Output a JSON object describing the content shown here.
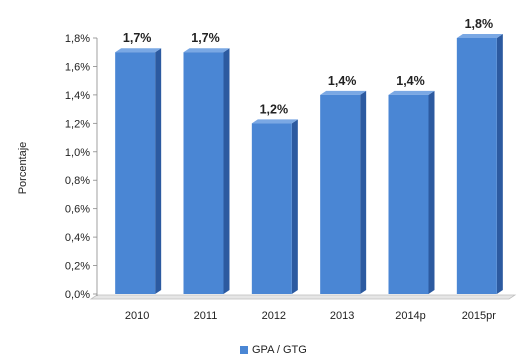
{
  "chart_data": {
    "type": "bar",
    "categories": [
      "2010",
      "2011",
      "2012",
      "2013",
      "2014p",
      "2015pr"
    ],
    "series": [
      {
        "name": "GPA / GTG",
        "values": [
          1.7,
          1.7,
          1.2,
          1.4,
          1.4,
          1.8
        ]
      }
    ],
    "data_labels": [
      "1,7%",
      "1,7%",
      "1,2%",
      "1,4%",
      "1,4%",
      "1,8%"
    ],
    "y_ticks": [
      "0,0%",
      "0,2%",
      "0,4%",
      "0,6%",
      "0,8%",
      "1,0%",
      "1,2%",
      "1,4%",
      "1,6%",
      "1,8%"
    ],
    "ylabel": "Porcentaje",
    "xlabel": "",
    "ylim": [
      0,
      1.8
    ],
    "grid": false,
    "legend_position": "bottom-center",
    "colors": {
      "bar_front": "#4a86d4",
      "bar_side": "#2c5aa0",
      "bar_top": "#7aa8e4",
      "axis": "#888888"
    }
  }
}
